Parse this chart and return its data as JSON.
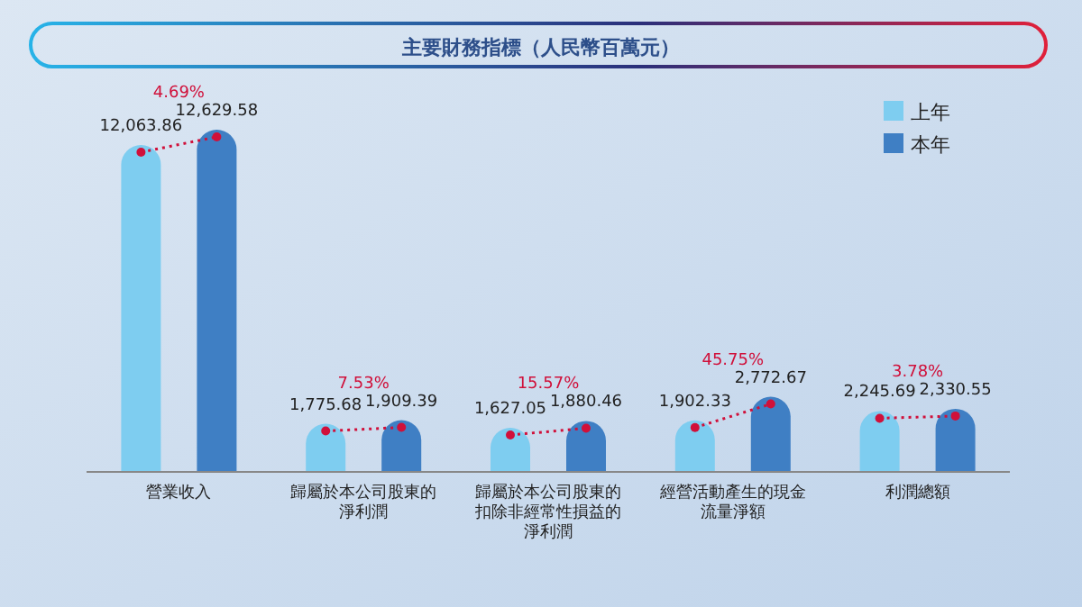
{
  "chart_data": {
    "type": "bar",
    "title": "主要財務指標（人民幣百萬元）",
    "categories": [
      "營業收入",
      "歸屬於本公司股東的淨利潤",
      "歸屬於本公司股東的扣除非經常性損益的淨利潤",
      "經營活動產生的現金流量淨額",
      "利潤總額"
    ],
    "series": [
      {
        "name": "上年",
        "color": "#7ecdf0",
        "values": [
          12063.86,
          1775.68,
          1627.05,
          1902.33,
          2245.69
        ],
        "value_labels": [
          "12,063.86",
          "1,775.68",
          "1,627.05",
          "1,902.33",
          "2,245.69"
        ]
      },
      {
        "name": "本年",
        "color": "#3f7fc4",
        "values": [
          12629.58,
          1909.39,
          1880.46,
          2772.67,
          2330.55
        ],
        "value_labels": [
          "12,629.58",
          "1,909.39",
          "1,880.46",
          "2,772.67",
          "2,330.55"
        ]
      }
    ],
    "legend": "top right",
    "annotations": [
      "4.69%",
      "7.53%",
      "15.57%",
      "45.75%",
      "3.78%"
    ]
  }
}
